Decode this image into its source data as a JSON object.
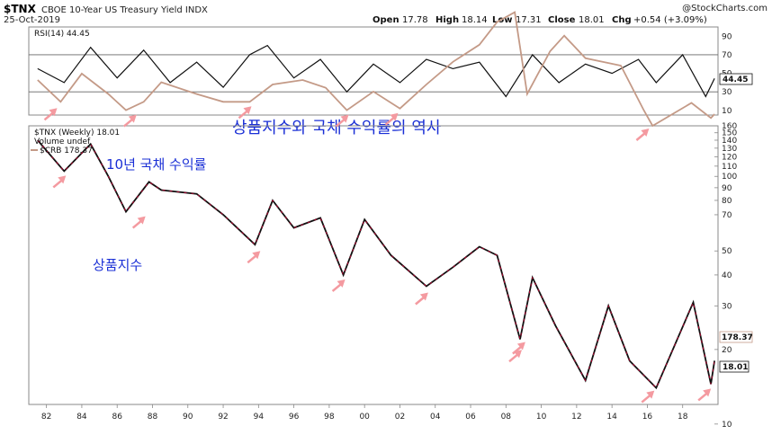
{
  "header": {
    "ticker": "$TNX",
    "description": "CBOE 10-Year US Treasury Yield INDX",
    "date": "25-Oct-2019",
    "open_label": "Open",
    "open": "17.78",
    "high_label": "High",
    "high": "18.14",
    "low_label": "Low",
    "low": "17.31",
    "close_label": "Close",
    "close": "18.01",
    "chg_label": "Chg",
    "chg": "+0.54 (+3.09%)",
    "watermark": "@StockCharts.com"
  },
  "rsi_panel": {
    "label": "RSI(14) 44.45",
    "last_value": "44.45"
  },
  "price_panel": {
    "legend_tnx": "$TNX (Weekly) 18.01",
    "legend_volume": "Volume undef",
    "legend_crb": "$CRB 178.37",
    "last_crb": "178.37",
    "last_tnx": "18.01"
  },
  "annotations": {
    "title": "상품지수와 국채 수익률의 역사",
    "tnx_label": "10년 국채 수익률",
    "crb_label": "상품지수"
  },
  "colors": {
    "tnx": "#111111",
    "tnx_accent": "#cc0033",
    "crb": "#c49a87",
    "rsi": "#111111",
    "annotation_text": "#1a2fd6",
    "arrow": "#f49aa0"
  },
  "chart_data": [
    {
      "type": "line",
      "name": "RSI panel",
      "series": [
        {
          "name": "RSI(14)",
          "x": [
            1981.5,
            1983,
            1984.5,
            1986,
            1987.5,
            1989,
            1990.5,
            1992,
            1993.5,
            1994.5,
            1996,
            1997.5,
            1999,
            2000.5,
            2002,
            2003.5,
            2005,
            2006.5,
            2008,
            2009.5,
            2011,
            2012.5,
            2014,
            2015.5,
            2016.5,
            2018,
            2019.3,
            2019.8
          ],
          "values": [
            55,
            40,
            78,
            45,
            75,
            40,
            62,
            35,
            70,
            80,
            45,
            65,
            30,
            60,
            40,
            65,
            55,
            62,
            25,
            70,
            40,
            60,
            50,
            65,
            40,
            70,
            25,
            44.45
          ]
        }
      ],
      "yticks": [
        10,
        30,
        50,
        70,
        90
      ],
      "ylim": [
        5,
        100
      ],
      "guides": [
        30,
        70
      ]
    },
    {
      "type": "line",
      "name": "Price panel",
      "scale": "log",
      "series": [
        {
          "name": "$TNX (Weekly)",
          "x": [
            1981.5,
            1983,
            1984.5,
            1985.5,
            1986.5,
            1987.8,
            1988.5,
            1990.5,
            1992,
            1993.8,
            1994.8,
            1996,
            1997.5,
            1998.8,
            2000,
            2001.5,
            2003.5,
            2005,
            2006.5,
            2007.5,
            2008.8,
            2009.5,
            2010.8,
            2012.5,
            2013.8,
            2015,
            2016.5,
            2018.6,
            2019.6,
            2019.8
          ],
          "values": [
            140,
            105,
            135,
            100,
            72,
            95,
            88,
            85,
            70,
            53,
            80,
            62,
            68,
            40,
            67,
            48,
            36,
            43,
            52,
            48,
            22,
            39,
            25,
            15,
            30,
            18,
            14,
            31,
            14.5,
            18.01
          ]
        },
        {
          "name": "$CRB",
          "x": [
            1981.5,
            1982.8,
            1984,
            1985.5,
            1986.5,
            1987.5,
            1988.5,
            1990.5,
            1992,
            1993.5,
            1994.8,
            1996.5,
            1997.8,
            1999,
            2000.5,
            2002,
            2003.5,
            2005,
            2006.5,
            2007.5,
            2008.5,
            2009.2,
            2010.5,
            2011.3,
            2012.5,
            2014.5,
            2015.8,
            2016.3,
            2018.5,
            2019.6,
            2019.8
          ],
          "values": [
            245,
            200,
            260,
            215,
            185,
            200,
            240,
            215,
            200,
            200,
            235,
            245,
            228,
            185,
            220,
            188,
            235,
            290,
            340,
            420,
            460,
            215,
            320,
            370,
            300,
            280,
            185,
            160,
            198,
            172,
            178.37
          ]
        }
      ],
      "xticks": [
        "82",
        "84",
        "86",
        "88",
        "90",
        "92",
        "94",
        "96",
        "98",
        "00",
        "02",
        "04",
        "06",
        "08",
        "10",
        "12",
        "14",
        "16",
        "18"
      ],
      "yticks": [
        10,
        20,
        30,
        40,
        50,
        70,
        80,
        90,
        100,
        110,
        120,
        130,
        140,
        150,
        160
      ],
      "ylim": [
        12,
        160
      ]
    }
  ]
}
